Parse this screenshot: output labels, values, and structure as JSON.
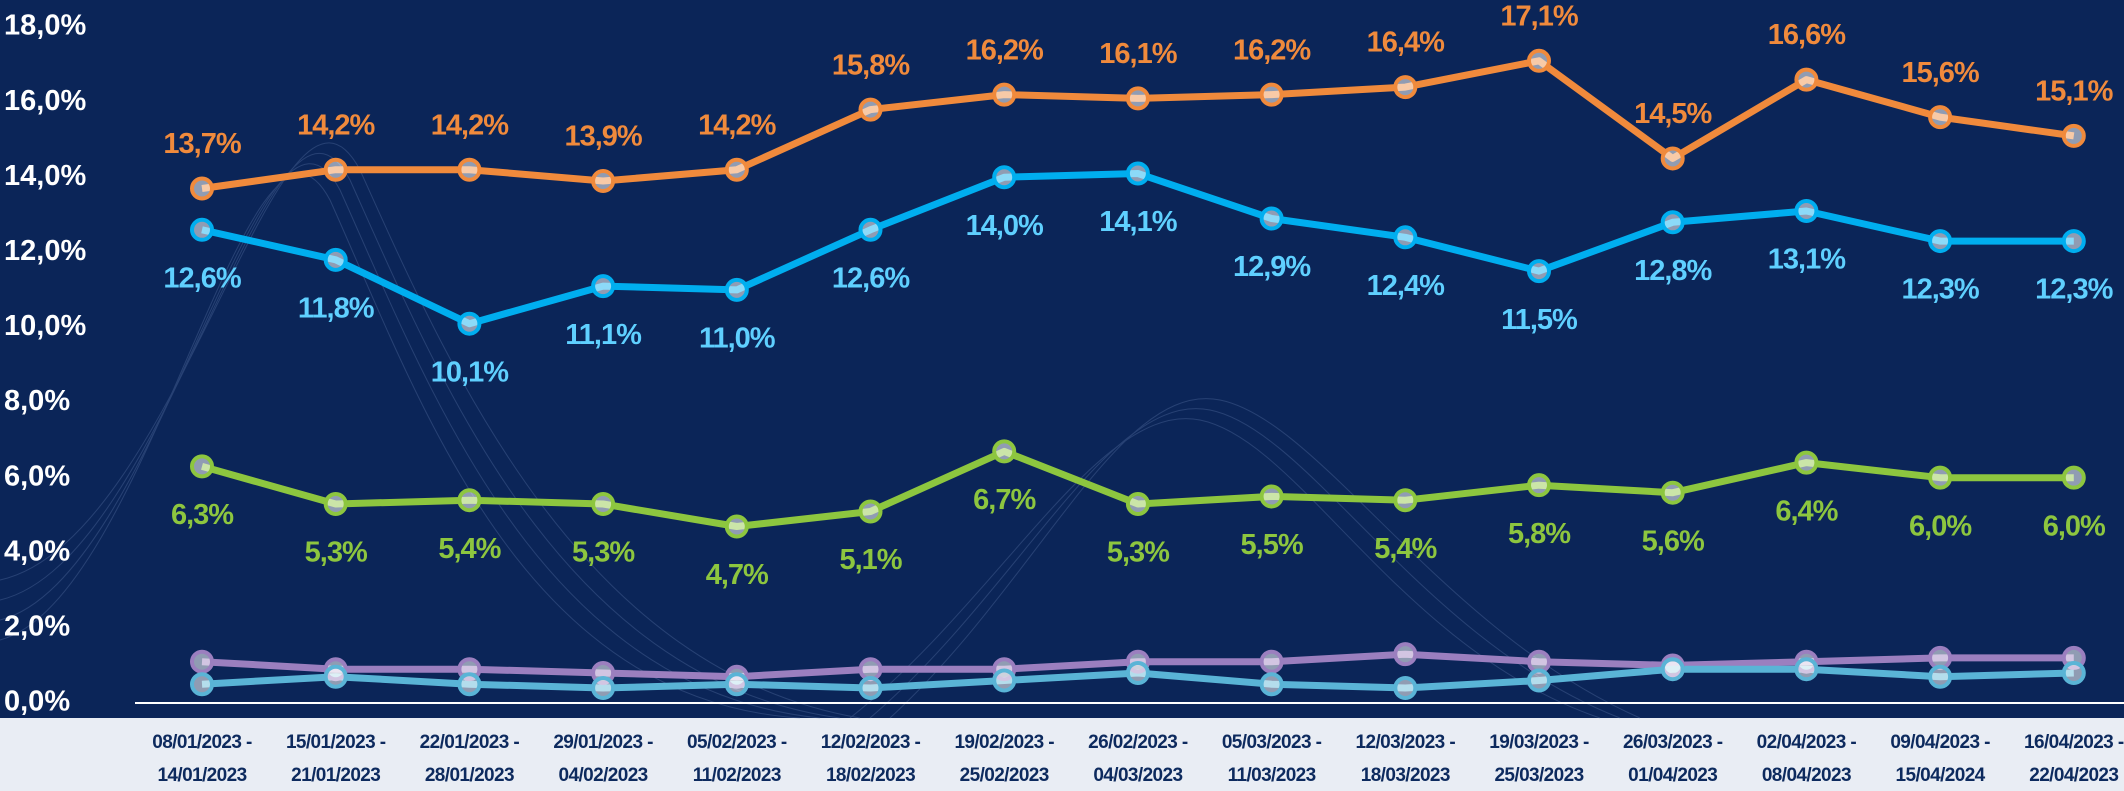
{
  "chart_data": {
    "type": "line",
    "categories": [
      "08/01/2023 -\n14/01/2023",
      "15/01/2023 -\n21/01/2023",
      "22/01/2023 -\n28/01/2023",
      "29/01/2023 -\n04/02/2023",
      "05/02/2023 -\n11/02/2023",
      "12/02/2023 -\n18/02/2023",
      "19/02/2023 -\n25/02/2023",
      "26/02/2023 -\n04/03/2023",
      "05/03/2023 -\n11/03/2023",
      "12/03/2023 -\n18/03/2023",
      "19/03/2023 -\n25/03/2023",
      "26/03/2023 -\n01/04/2023",
      "02/04/2023 -\n08/04/2023",
      "09/04/2023 -\n15/04/2024",
      "16/04/2023 -\n22/04/2023"
    ],
    "series": [
      {
        "color": "#f08a3c",
        "values": [
          13.7,
          14.2,
          14.2,
          13.9,
          14.2,
          15.8,
          16.2,
          16.1,
          16.2,
          16.4,
          17.1,
          14.5,
          16.6,
          15.6,
          15.1
        ],
        "value_labels": [
          "13,7%",
          "14,2%",
          "14,2%",
          "13,9%",
          "14,2%",
          "15,8%",
          "16,2%",
          "16,1%",
          "16,2%",
          "16,4%",
          "17,1%",
          "14,5%",
          "16,6%",
          "15,6%",
          "15,1%"
        ]
      },
      {
        "color": "#00aeef",
        "values": [
          12.6,
          11.8,
          10.1,
          11.1,
          11.0,
          12.6,
          14.0,
          14.1,
          12.9,
          12.4,
          11.5,
          12.8,
          13.1,
          12.3,
          12.3
        ],
        "value_labels": [
          "12,6%",
          "11,8%",
          "10,1%",
          "11,1%",
          "11,0%",
          "12,6%",
          "14,0%",
          "14,1%",
          "12,9%",
          "12,4%",
          "11,5%",
          "12,8%",
          "13,1%",
          "12,3%",
          "12,3%"
        ]
      },
      {
        "color": "#8dc63f",
        "values": [
          6.3,
          5.3,
          5.4,
          5.3,
          4.7,
          5.1,
          6.7,
          5.3,
          5.5,
          5.4,
          5.8,
          5.6,
          6.4,
          6.0,
          6.0
        ],
        "value_labels": [
          "6,3%",
          "5,3%",
          "5,4%",
          "5,3%",
          "4,7%",
          "5,1%",
          "6,7%",
          "5,3%",
          "5,5%",
          "5,4%",
          "5,8%",
          "5,6%",
          "6,4%",
          "6,0%",
          "6,0%"
        ]
      },
      {
        "color": "#9b7fbf",
        "values": [
          1.1,
          0.9,
          0.9,
          0.8,
          0.7,
          0.9,
          0.9,
          1.1,
          1.1,
          1.3,
          1.1,
          1.0,
          1.1,
          1.2,
          1.2
        ]
      },
      {
        "color": "#5ab4d6",
        "values": [
          0.5,
          0.7,
          0.5,
          0.4,
          0.5,
          0.4,
          0.6,
          0.8,
          0.5,
          0.4,
          0.6,
          0.9,
          0.9,
          0.7,
          0.8
        ]
      }
    ],
    "ylim": [
      0,
      18
    ],
    "yticks": [
      {
        "value": 0,
        "label": "0,0%"
      },
      {
        "value": 2,
        "label": "2,0%"
      },
      {
        "value": 4,
        "label": "4,0%"
      },
      {
        "value": 6,
        "label": "6,0%"
      },
      {
        "value": 8,
        "label": "8,0%"
      },
      {
        "value": 10,
        "label": "10,0%"
      },
      {
        "value": 12,
        "label": "12,0%"
      },
      {
        "value": 14,
        "label": "14,0%"
      },
      {
        "value": 16,
        "label": "16,0%"
      },
      {
        "value": 18,
        "label": "18,0%"
      }
    ]
  }
}
